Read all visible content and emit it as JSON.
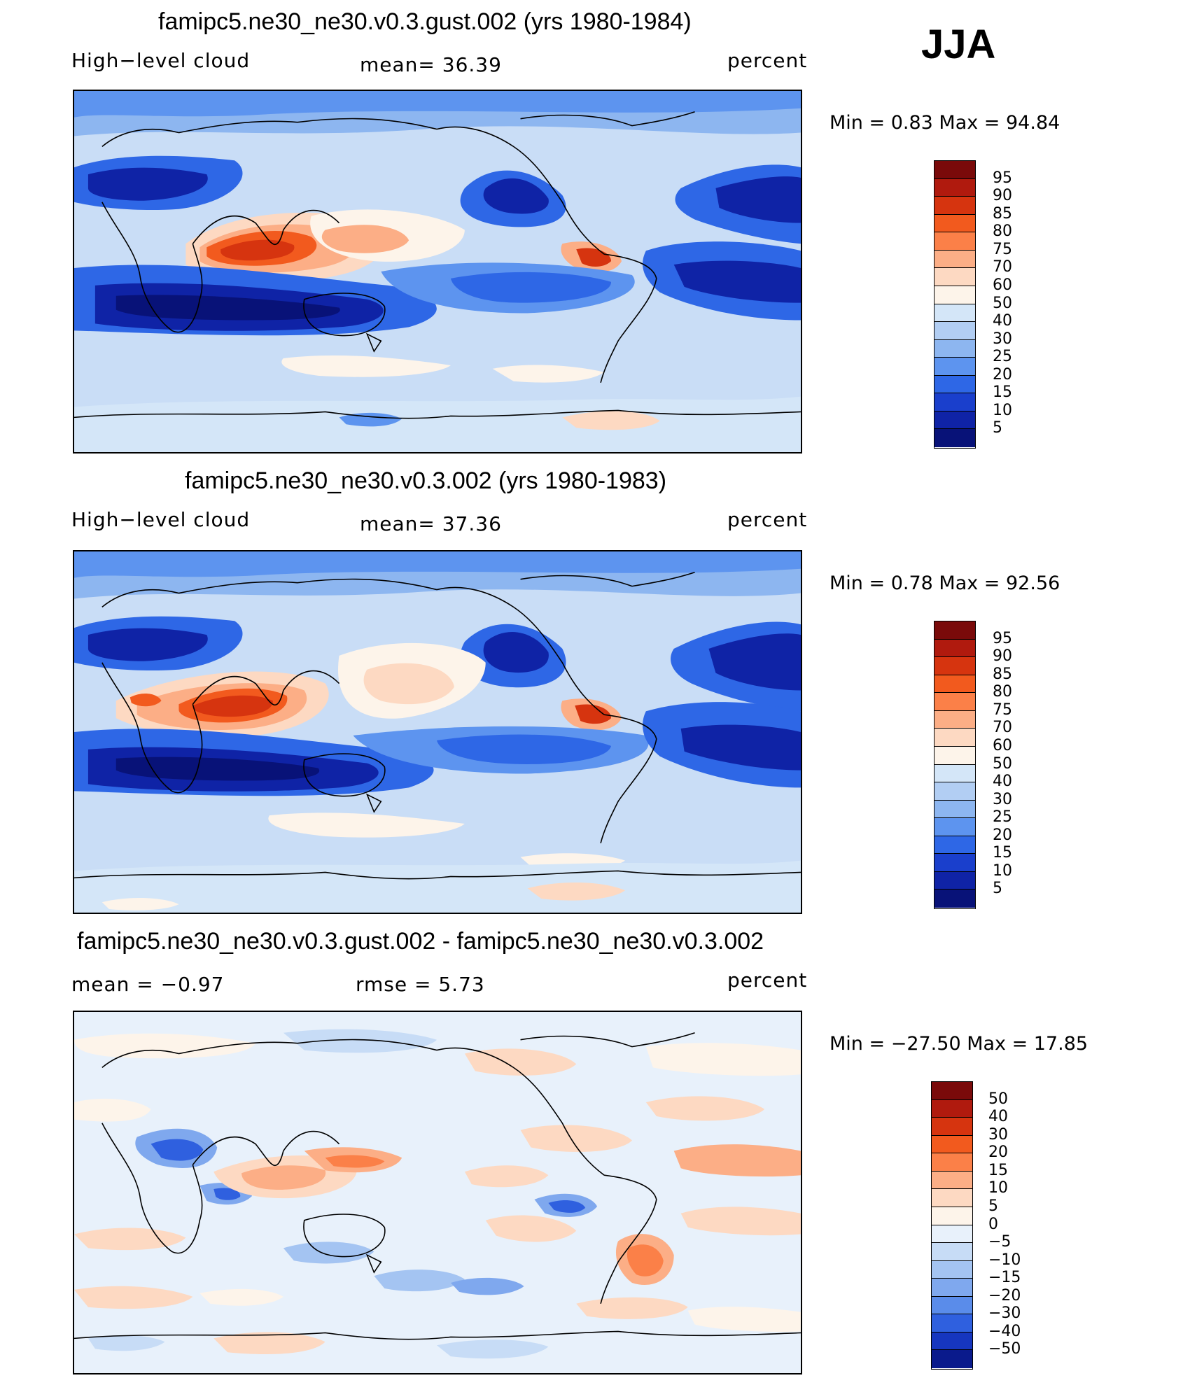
{
  "season": "JJA",
  "panels": [
    {
      "title": "famipc5.ne30_ne30.v0.3.gust.002 (yrs 1980-1984)",
      "left_label": "High−level cloud",
      "center_label": "mean=   36.39",
      "right_label": "percent",
      "minmax": "Min =    0.83  Max =    94.84",
      "colorbar_labels": [
        "95",
        "90",
        "85",
        "80",
        "75",
        "70",
        "60",
        "50",
        "40",
        "30",
        "25",
        "20",
        "15",
        "10",
        "5"
      ],
      "map_description": "high-level cloud field"
    },
    {
      "title": "famipc5.ne30_ne30.v0.3.002 (yrs 1980-1983)",
      "left_label": "High−level cloud",
      "center_label": "mean=   37.36",
      "right_label": "percent",
      "minmax": "Min =    0.78  Max =    92.56",
      "colorbar_labels": [
        "95",
        "90",
        "85",
        "80",
        "75",
        "70",
        "60",
        "50",
        "40",
        "30",
        "25",
        "20",
        "15",
        "10",
        "5"
      ],
      "map_description": "high-level cloud field"
    },
    {
      "title": "famipc5.ne30_ne30.v0.3.gust.002 - famipc5.ne30_ne30.v0.3.002",
      "left_label": "mean =   −0.97",
      "center_label": "rmse =     5.73",
      "right_label": "percent",
      "minmax": "Min = −27.50  Max =    17.85",
      "colorbar_labels": [
        "50",
        "40",
        "30",
        "20",
        "15",
        "10",
        "5",
        "0",
        "−5",
        "−10",
        "−15",
        "−20",
        "−30",
        "−40",
        "−50"
      ],
      "map_description": "difference field"
    }
  ],
  "colors": {
    "abs_scale": [
      "#7a0a0a",
      "#b01a0e",
      "#d6340f",
      "#f25a1e",
      "#fb8048",
      "#fcae86",
      "#fdd9c2",
      "#fdf4ea",
      "#d4e6f8",
      "#b2cef3",
      "#8db6f0",
      "#5d94ef",
      "#2e67e6",
      "#1a3fcc",
      "#0f23a6",
      "#081278"
    ],
    "diff_scale": [
      "#7a0a0a",
      "#b01a0e",
      "#d6340f",
      "#f25a1e",
      "#fb8048",
      "#fcae86",
      "#fdd9c2",
      "#fdf4ea",
      "#e8f1fb",
      "#c7dcf6",
      "#a4c4f2",
      "#7fa8ee",
      "#5a8cea",
      "#2f60df",
      "#1636bf",
      "#0a1a8c"
    ]
  },
  "chart_data": [
    {
      "type": "heatmap",
      "title": "famipc5.ne30_ne30.v0.3.gust.002 (yrs 1980-1984)",
      "variable": "High-level cloud",
      "units": "percent",
      "mean": 36.39,
      "min": 0.83,
      "max": 94.84,
      "levels": [
        5,
        10,
        15,
        20,
        25,
        30,
        40,
        50,
        60,
        70,
        75,
        80,
        85,
        90,
        95
      ],
      "season": "JJA"
    },
    {
      "type": "heatmap",
      "title": "famipc5.ne30_ne30.v0.3.002 (yrs 1980-1983)",
      "variable": "High-level cloud",
      "units": "percent",
      "mean": 37.36,
      "min": 0.78,
      "max": 92.56,
      "levels": [
        5,
        10,
        15,
        20,
        25,
        30,
        40,
        50,
        60,
        70,
        75,
        80,
        85,
        90,
        95
      ],
      "season": "JJA"
    },
    {
      "type": "heatmap",
      "title": "famipc5.ne30_ne30.v0.3.gust.002 - famipc5.ne30_ne30.v0.3.002",
      "units": "percent",
      "mean": -0.97,
      "rmse": 5.73,
      "min": -27.5,
      "max": 17.85,
      "levels": [
        -50,
        -40,
        -30,
        -20,
        -15,
        -10,
        -5,
        0,
        5,
        10,
        15,
        20,
        30,
        40,
        50
      ],
      "season": "JJA"
    }
  ]
}
